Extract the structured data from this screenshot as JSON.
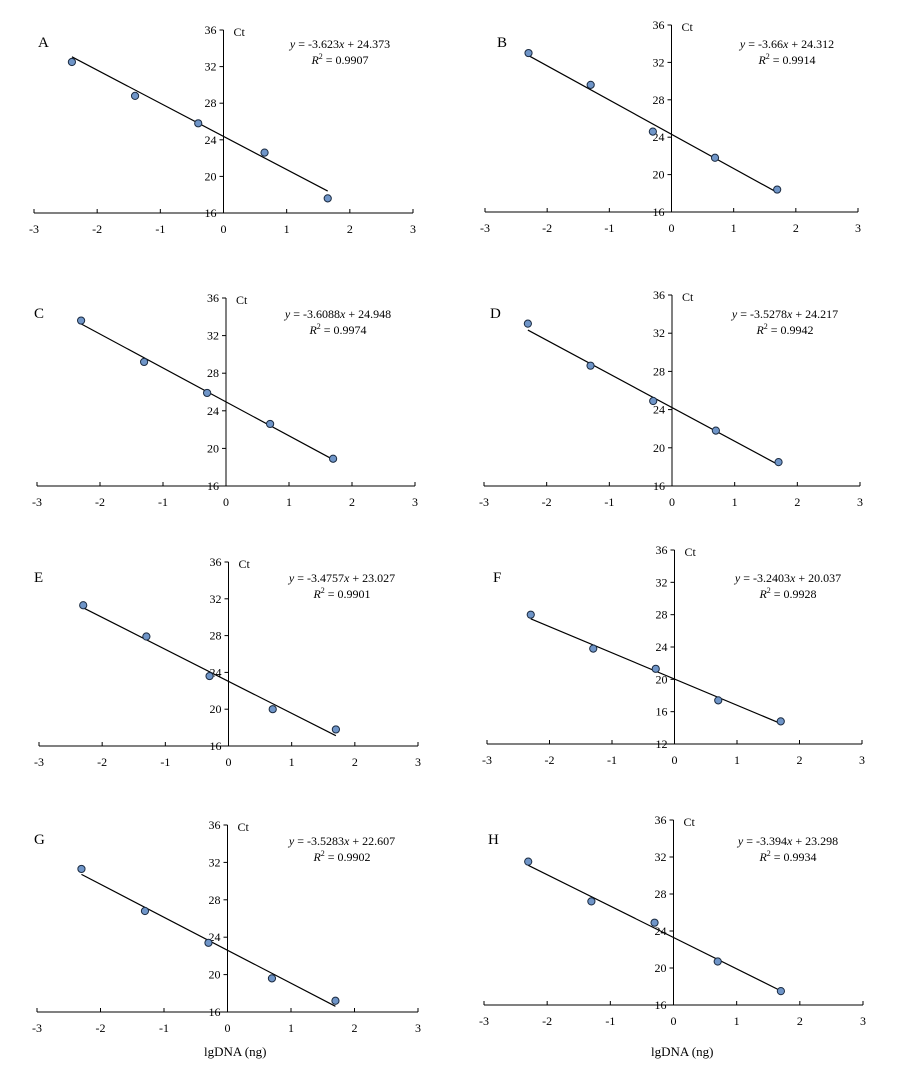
{
  "chart_data": [
    {
      "type": "scatter",
      "panel": "A",
      "ylabel": "Ct",
      "xlabel": "",
      "equation": "y = -3.623x + 24.373",
      "r2": "R2 = 0.9907",
      "xlim": [
        -3,
        3
      ],
      "ylim": [
        16,
        36
      ],
      "xticks": [
        "-3",
        "-2",
        "-1",
        "0",
        "1",
        "2",
        "3"
      ],
      "yticks": [
        "16",
        "20",
        "24",
        "28",
        "32",
        "36"
      ],
      "slope": -3.623,
      "intercept": 24.373,
      "x": [
        -2.4,
        -1.4,
        -0.4,
        0.65,
        1.65
      ],
      "y": [
        32.5,
        28.8,
        25.8,
        22.6,
        17.6
      ],
      "fit_x": [
        -2.4,
        1.65
      ]
    },
    {
      "type": "scatter",
      "panel": "B",
      "ylabel": "Ct",
      "xlabel": "",
      "equation": "y = -3.66x + 24.312",
      "r2": "R2 = 0.9914",
      "xlim": [
        -3,
        3
      ],
      "ylim": [
        16,
        36
      ],
      "xticks": [
        "-3",
        "-2",
        "-1",
        "0",
        "1",
        "2",
        "3"
      ],
      "yticks": [
        "16",
        "20",
        "24",
        "28",
        "32",
        "36"
      ],
      "slope": -3.66,
      "intercept": 24.312,
      "x": [
        -2.3,
        -1.3,
        -0.3,
        0.7,
        1.7
      ],
      "y": [
        33.0,
        29.6,
        24.6,
        21.8,
        18.4
      ],
      "fit_x": [
        -2.3,
        1.7
      ]
    },
    {
      "type": "scatter",
      "panel": "C",
      "ylabel": "Ct",
      "xlabel": "",
      "equation": "y = -3.6088x + 24.948",
      "r2": "R2 = 0.9974",
      "xlim": [
        -3,
        3
      ],
      "ylim": [
        16,
        36
      ],
      "xticks": [
        "-3",
        "-2",
        "-1",
        "0",
        "1",
        "2",
        "3"
      ],
      "yticks": [
        "16",
        "20",
        "24",
        "28",
        "32",
        "36"
      ],
      "slope": -3.6088,
      "intercept": 24.948,
      "x": [
        -2.3,
        -1.3,
        -0.3,
        0.7,
        1.7
      ],
      "y": [
        33.6,
        29.2,
        25.9,
        22.6,
        18.9
      ],
      "fit_x": [
        -2.3,
        1.7
      ]
    },
    {
      "type": "scatter",
      "panel": "D",
      "ylabel": "Ct",
      "xlabel": "",
      "equation": "y = -3.5278x + 24.217",
      "r2": "R2 = 0.9942",
      "xlim": [
        -3,
        3
      ],
      "ylim": [
        16,
        36
      ],
      "xticks": [
        "-3",
        "-2",
        "-1",
        "0",
        "1",
        "2",
        "3"
      ],
      "yticks": [
        "16",
        "20",
        "24",
        "28",
        "32",
        "36"
      ],
      "slope": -3.5278,
      "intercept": 24.217,
      "x": [
        -2.3,
        -1.3,
        -0.3,
        0.7,
        1.7
      ],
      "y": [
        33.0,
        28.6,
        24.9,
        21.8,
        18.5
      ],
      "fit_x": [
        -2.3,
        1.7
      ]
    },
    {
      "type": "scatter",
      "panel": "E",
      "ylabel": "Ct",
      "xlabel": "",
      "equation": "y = -3.4757x + 23.027",
      "r2": "R2 = 0.9901",
      "xlim": [
        -3,
        3
      ],
      "ylim": [
        16,
        36
      ],
      "xticks": [
        "-3",
        "-2",
        "-1",
        "0",
        "1",
        "2",
        "3"
      ],
      "yticks": [
        "16",
        "20",
        "24",
        "28",
        "32",
        "36"
      ],
      "slope": -3.4757,
      "intercept": 23.027,
      "x": [
        -2.3,
        -1.3,
        -0.3,
        0.7,
        1.7
      ],
      "y": [
        31.3,
        27.9,
        23.6,
        20.0,
        17.8
      ],
      "fit_x": [
        -2.3,
        1.7
      ]
    },
    {
      "type": "scatter",
      "panel": "F",
      "ylabel": "Ct",
      "xlabel": "",
      "equation": "y = -3.2403x + 20.037",
      "r2": "R2 = 0.9928",
      "xlim": [
        -3,
        3
      ],
      "ylim": [
        12,
        36
      ],
      "xticks": [
        "-3",
        "-2",
        "-1",
        "0",
        "1",
        "2",
        "3"
      ],
      "yticks": [
        "12",
        "16",
        "20",
        "24",
        "28",
        "32",
        "36"
      ],
      "slope": -3.2403,
      "intercept": 20.037,
      "x": [
        -2.3,
        -1.3,
        -0.3,
        0.7,
        1.7
      ],
      "y": [
        28.0,
        23.8,
        21.3,
        17.4,
        14.8
      ],
      "fit_x": [
        -2.3,
        1.7
      ]
    },
    {
      "type": "scatter",
      "panel": "G",
      "ylabel": "Ct",
      "xlabel": "lgDNA (ng)",
      "equation": "y = -3.5283x + 22.607",
      "r2": "R2 = 0.9902",
      "xlim": [
        -3,
        3
      ],
      "ylim": [
        16,
        36
      ],
      "xticks": [
        "-3",
        "-2",
        "-1",
        "0",
        "1",
        "2",
        "3"
      ],
      "yticks": [
        "16",
        "20",
        "24",
        "28",
        "32",
        "36"
      ],
      "slope": -3.5283,
      "intercept": 22.607,
      "x": [
        -2.3,
        -1.3,
        -0.3,
        0.7,
        1.7
      ],
      "y": [
        31.3,
        26.8,
        23.4,
        19.6,
        17.2
      ],
      "fit_x": [
        -2.3,
        1.7
      ]
    },
    {
      "type": "scatter",
      "panel": "H",
      "ylabel": "Ct",
      "xlabel": "lgDNA (ng)",
      "equation": "y = -3.394x + 23.298",
      "r2": "R2 = 0.9934",
      "xlim": [
        -3,
        3
      ],
      "ylim": [
        16,
        36
      ],
      "xticks": [
        "-3",
        "-2",
        "-1",
        "0",
        "1",
        "2",
        "3"
      ],
      "yticks": [
        "16",
        "20",
        "24",
        "28",
        "32",
        "36"
      ],
      "slope": -3.394,
      "intercept": 23.298,
      "x": [
        -2.3,
        -1.3,
        -0.3,
        0.7,
        1.7
      ],
      "y": [
        31.5,
        27.2,
        24.9,
        20.7,
        17.5
      ],
      "fit_x": [
        -2.3,
        1.7
      ]
    }
  ],
  "colors": {
    "marker_fill": "#6f95c8",
    "marker_stroke": "#1a2a40",
    "line": "#000000",
    "axis": "#000000"
  }
}
